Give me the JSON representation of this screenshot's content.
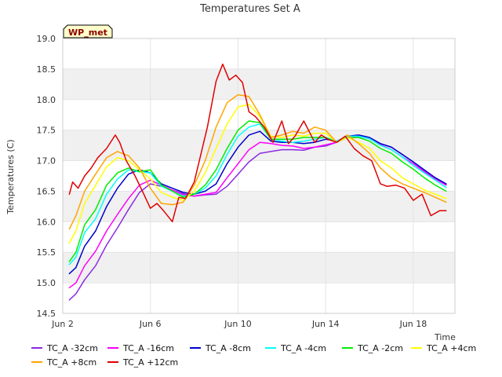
{
  "chart_data": {
    "type": "line",
    "title": "Temperatures Set A",
    "xlabel": "Time",
    "ylabel": "Temperatures (C)",
    "station_label": "WP_met",
    "xlim": [
      2.0,
      19.9
    ],
    "ylim": [
      14.5,
      19.0
    ],
    "x_ticks": [
      {
        "value": 2,
        "label": "Jun 2"
      },
      {
        "value": 6,
        "label": "Jun 6"
      },
      {
        "value": 10,
        "label": "Jun 10"
      },
      {
        "value": 14,
        "label": "Jun 14"
      },
      {
        "value": 18,
        "label": "Jun 18"
      }
    ],
    "y_ticks": [
      {
        "value": 14.5,
        "label": "14.5"
      },
      {
        "value": 15.0,
        "label": "15.0"
      },
      {
        "value": 15.5,
        "label": "15.5"
      },
      {
        "value": 16.0,
        "label": "16.0"
      },
      {
        "value": 16.5,
        "label": "16.5"
      },
      {
        "value": 17.0,
        "label": "17.0"
      },
      {
        "value": 17.5,
        "label": "17.5"
      },
      {
        "value": 18.0,
        "label": "18.0"
      },
      {
        "value": 18.5,
        "label": "18.5"
      },
      {
        "value": 19.0,
        "label": "19.0"
      }
    ],
    "bands": [
      [
        15.0,
        15.5
      ],
      [
        16.0,
        16.5
      ],
      [
        17.0,
        17.5
      ],
      [
        18.0,
        18.5
      ]
    ],
    "band_color": "#f0f0f0",
    "grid": true,
    "legend_position": "bottom",
    "series": [
      {
        "name": "TC_A -32cm",
        "color": "#8a2be2",
        "x": [
          2.3,
          2.6,
          3.0,
          3.5,
          4.0,
          4.5,
          5.0,
          5.5,
          6.0,
          6.5,
          7.0,
          7.5,
          8.0,
          8.5,
          9.0,
          9.5,
          10.0,
          10.5,
          11.0,
          11.5,
          12.0,
          12.5,
          13.0,
          13.5,
          14.0,
          14.5,
          15.0,
          15.5,
          16.0,
          16.5,
          17.0,
          17.5,
          18.0,
          18.5,
          19.0,
          19.5
        ],
        "y": [
          14.72,
          14.82,
          15.05,
          15.28,
          15.62,
          15.9,
          16.2,
          16.48,
          16.62,
          16.58,
          16.52,
          16.46,
          16.42,
          16.44,
          16.45,
          16.58,
          16.78,
          16.98,
          17.12,
          17.15,
          17.18,
          17.18,
          17.17,
          17.22,
          17.24,
          17.3,
          17.38,
          17.4,
          17.36,
          17.28,
          17.22,
          17.1,
          16.98,
          16.84,
          16.72,
          16.62
        ]
      },
      {
        "name": "TC_A -16cm",
        "color": "#ff00ff",
        "x": [
          2.3,
          2.6,
          3.0,
          3.5,
          4.0,
          4.5,
          5.0,
          5.5,
          6.0,
          6.5,
          7.0,
          7.5,
          8.0,
          8.5,
          9.0,
          9.5,
          10.0,
          10.5,
          11.0,
          11.5,
          12.0,
          12.5,
          13.0,
          13.5,
          14.0,
          14.5,
          15.0,
          15.5,
          16.0,
          16.5,
          17.0,
          17.5,
          18.0,
          18.5,
          19.0,
          19.5
        ],
        "y": [
          14.92,
          15.0,
          15.28,
          15.52,
          15.85,
          16.12,
          16.38,
          16.6,
          16.68,
          16.6,
          16.52,
          16.44,
          16.42,
          16.45,
          16.48,
          16.72,
          16.95,
          17.18,
          17.3,
          17.28,
          17.25,
          17.24,
          17.2,
          17.22,
          17.26,
          17.3,
          17.38,
          17.4,
          17.36,
          17.26,
          17.18,
          17.06,
          16.95,
          16.82,
          16.7,
          16.6
        ]
      },
      {
        "name": "TC_A -8cm",
        "color": "#0000cd",
        "x": [
          2.3,
          2.6,
          3.0,
          3.5,
          4.0,
          4.5,
          5.0,
          5.5,
          6.0,
          6.5,
          7.0,
          7.5,
          8.0,
          8.5,
          9.0,
          9.5,
          10.0,
          10.5,
          11.0,
          11.5,
          12.0,
          12.5,
          13.0,
          13.5,
          14.0,
          14.5,
          15.0,
          15.5,
          16.0,
          16.5,
          17.0,
          17.5,
          18.0,
          18.5,
          19.0,
          19.5
        ],
        "y": [
          15.15,
          15.25,
          15.6,
          15.85,
          16.25,
          16.55,
          16.78,
          16.85,
          16.8,
          16.62,
          16.55,
          16.48,
          16.45,
          16.5,
          16.62,
          16.95,
          17.22,
          17.42,
          17.48,
          17.32,
          17.3,
          17.3,
          17.28,
          17.3,
          17.35,
          17.32,
          17.4,
          17.42,
          17.38,
          17.28,
          17.22,
          17.1,
          16.98,
          16.85,
          16.72,
          16.62
        ]
      },
      {
        "name": "TC_A -4cm",
        "color": "#00ffff",
        "x": [
          2.3,
          2.6,
          3.0,
          3.5,
          4.0,
          4.5,
          5.0,
          5.5,
          6.0,
          6.5,
          7.0,
          7.5,
          8.0,
          8.5,
          9.0,
          9.5,
          10.0,
          10.5,
          11.0,
          11.5,
          12.0,
          12.5,
          13.0,
          13.5,
          14.0,
          14.5,
          15.0,
          15.5,
          16.0,
          16.5,
          17.0,
          17.5,
          18.0,
          18.5,
          19.0,
          19.5
        ],
        "y": [
          15.3,
          15.42,
          15.82,
          16.05,
          16.45,
          16.7,
          16.85,
          16.82,
          16.8,
          16.58,
          16.5,
          16.42,
          16.45,
          16.55,
          16.75,
          17.1,
          17.4,
          17.55,
          17.6,
          17.35,
          17.32,
          17.3,
          17.32,
          17.35,
          17.38,
          17.32,
          17.4,
          17.4,
          17.36,
          17.25,
          17.18,
          17.06,
          16.92,
          16.8,
          16.68,
          16.56
        ]
      },
      {
        "name": "TC_A -2cm",
        "color": "#00ee00",
        "x": [
          2.3,
          2.6,
          3.0,
          3.5,
          4.0,
          4.5,
          5.0,
          5.5,
          6.0,
          6.5,
          7.0,
          7.5,
          8.0,
          8.5,
          9.0,
          9.5,
          10.0,
          10.5,
          11.0,
          11.5,
          12.0,
          12.5,
          13.0,
          13.5,
          14.0,
          14.5,
          15.0,
          15.5,
          16.0,
          16.5,
          17.0,
          17.5,
          18.0,
          18.5,
          19.0,
          19.5
        ],
        "y": [
          15.35,
          15.5,
          15.95,
          16.2,
          16.6,
          16.8,
          16.88,
          16.82,
          16.85,
          16.6,
          16.5,
          16.4,
          16.45,
          16.6,
          16.85,
          17.2,
          17.5,
          17.65,
          17.62,
          17.35,
          17.35,
          17.35,
          17.38,
          17.38,
          17.38,
          17.3,
          17.38,
          17.38,
          17.32,
          17.2,
          17.12,
          16.98,
          16.86,
          16.72,
          16.6,
          16.5
        ]
      },
      {
        "name": "TC_A +4cm",
        "color": "#ffff00",
        "x": [
          2.3,
          2.6,
          3.0,
          3.5,
          4.0,
          4.5,
          5.0,
          5.5,
          6.0,
          6.5,
          7.0,
          7.5,
          8.0,
          8.5,
          9.0,
          9.5,
          10.0,
          10.5,
          11.0,
          11.5,
          12.0,
          12.5,
          13.0,
          13.5,
          14.0,
          14.5,
          15.0,
          15.5,
          16.0,
          16.5,
          17.0,
          17.5,
          18.0,
          18.5,
          19.0,
          19.5
        ],
        "y": [
          15.65,
          15.85,
          16.3,
          16.6,
          16.9,
          17.05,
          17.0,
          16.85,
          16.7,
          16.48,
          16.4,
          16.35,
          16.5,
          16.8,
          17.2,
          17.6,
          17.88,
          17.92,
          17.72,
          17.4,
          17.38,
          17.42,
          17.4,
          17.45,
          17.45,
          17.3,
          17.38,
          17.3,
          17.2,
          17.0,
          16.88,
          16.72,
          16.62,
          16.52,
          16.45,
          16.38
        ]
      },
      {
        "name": "TC_A +8cm",
        "color": "#ffa500",
        "x": [
          2.3,
          2.6,
          3.0,
          3.5,
          4.0,
          4.5,
          5.0,
          5.5,
          6.0,
          6.5,
          7.0,
          7.5,
          8.0,
          8.5,
          9.0,
          9.5,
          10.0,
          10.5,
          11.0,
          11.5,
          12.0,
          12.5,
          13.0,
          13.5,
          14.0,
          14.5,
          15.0,
          15.5,
          16.0,
          16.5,
          17.0,
          17.5,
          18.0,
          18.5,
          19.0,
          19.5
        ],
        "y": [
          15.88,
          16.1,
          16.5,
          16.78,
          17.05,
          17.15,
          17.08,
          16.88,
          16.55,
          16.3,
          16.28,
          16.32,
          16.6,
          17.0,
          17.55,
          17.95,
          18.08,
          18.05,
          17.75,
          17.38,
          17.42,
          17.48,
          17.45,
          17.55,
          17.5,
          17.3,
          17.42,
          17.28,
          17.12,
          16.88,
          16.72,
          16.62,
          16.55,
          16.48,
          16.4,
          16.32
        ]
      },
      {
        "name": "TC_A +12cm",
        "color": "#e00000",
        "x": [
          2.3,
          2.45,
          2.7,
          3.0,
          3.3,
          3.6,
          4.0,
          4.4,
          4.6,
          4.9,
          5.3,
          5.7,
          6.0,
          6.3,
          6.6,
          7.0,
          7.3,
          7.6,
          8.0,
          8.3,
          8.6,
          9.0,
          9.3,
          9.6,
          9.9,
          10.2,
          10.5,
          10.8,
          11.2,
          11.6,
          12.0,
          12.3,
          12.6,
          13.0,
          13.5,
          13.8,
          14.1,
          14.5,
          14.9,
          15.3,
          15.7,
          16.1,
          16.5,
          16.8,
          17.2,
          17.6,
          18.0,
          18.4,
          18.8,
          19.2,
          19.5
        ],
        "y": [
          16.45,
          16.65,
          16.55,
          16.75,
          16.88,
          17.05,
          17.2,
          17.42,
          17.3,
          17.0,
          16.75,
          16.45,
          16.22,
          16.3,
          16.18,
          16.0,
          16.4,
          16.38,
          16.65,
          17.1,
          17.55,
          18.3,
          18.58,
          18.32,
          18.4,
          18.28,
          17.8,
          17.72,
          17.55,
          17.3,
          17.65,
          17.28,
          17.4,
          17.65,
          17.3,
          17.42,
          17.35,
          17.3,
          17.4,
          17.2,
          17.08,
          17.0,
          16.62,
          16.58,
          16.6,
          16.55,
          16.35,
          16.45,
          16.1,
          16.18,
          16.18
        ]
      }
    ]
  }
}
